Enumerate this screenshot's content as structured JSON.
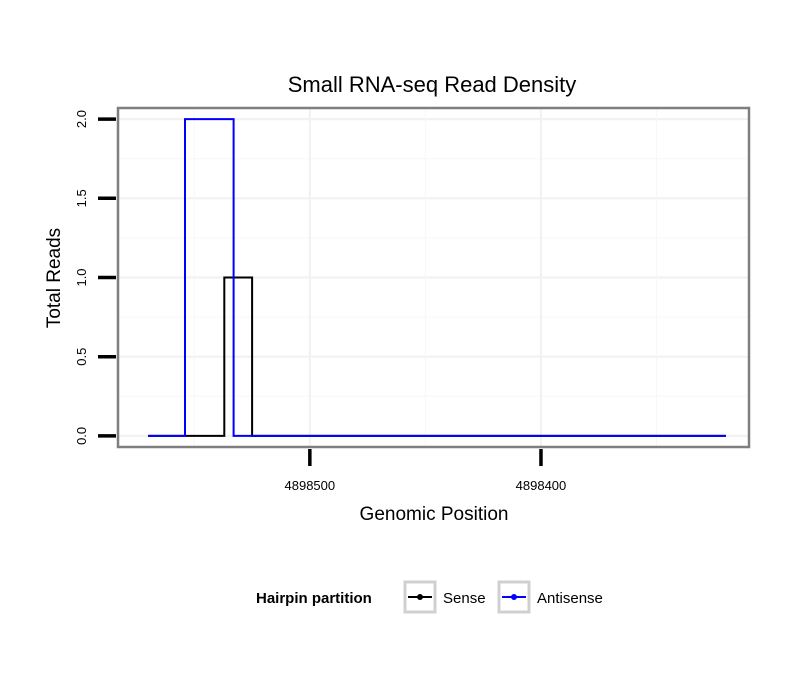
{
  "chart_data": {
    "type": "line",
    "title": "Small RNA-seq Read Density",
    "xlabel": "Genomic Position",
    "ylabel": "Total Reads",
    "x_reversed": true,
    "xlim": [
      4898583,
      4898310
    ],
    "ylim": [
      -0.07,
      2.07
    ],
    "x_ticks": [
      4898500,
      4898400
    ],
    "x_tick_labels": [
      "4898500",
      "4898400"
    ],
    "y_ticks": [
      0,
      0.5,
      1,
      1.5,
      2
    ],
    "y_tick_labels": [
      "0.0",
      "0.5",
      "1.0",
      "1.5",
      "2.0"
    ],
    "grid": true,
    "legend_position": "bottom",
    "legend_title": "Hairpin partition",
    "series": [
      {
        "name": "Sense",
        "color": "#000000",
        "x": [
          4898570,
          4898554,
          4898554,
          4898537,
          4898537,
          4898525,
          4898525,
          4898320
        ],
        "y": [
          0,
          0,
          0,
          0,
          1,
          1,
          0,
          0
        ]
      },
      {
        "name": "Antisense",
        "color": "#0000ff",
        "x": [
          4898570,
          4898554,
          4898554,
          4898533,
          4898533,
          4898320
        ],
        "y": [
          0,
          0,
          2,
          2,
          0,
          0
        ]
      }
    ]
  }
}
